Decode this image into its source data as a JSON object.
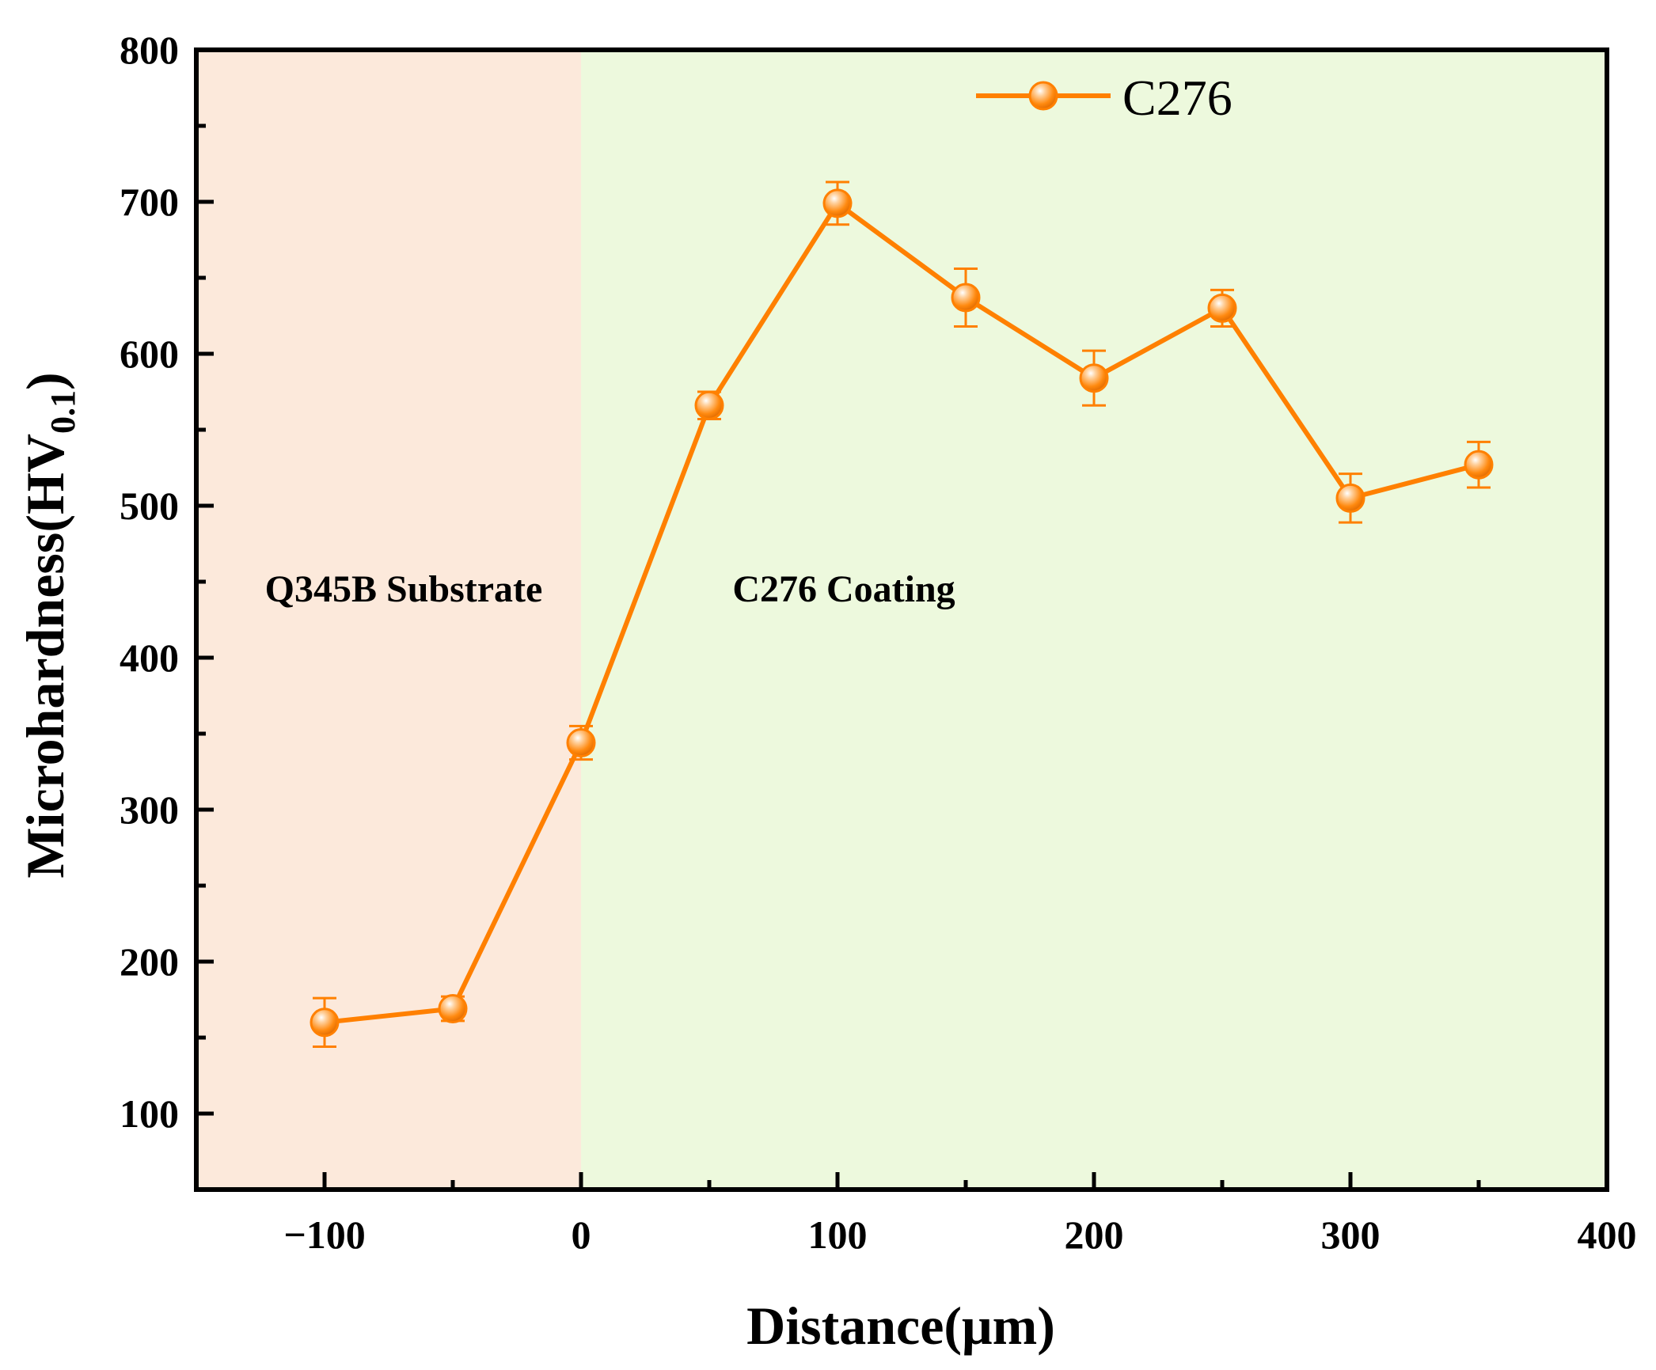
{
  "chart_data": {
    "type": "line",
    "title": "",
    "xlabel": "Distance(μm)",
    "ylabel_main": "Microhardness(HV",
    "ylabel_sub": "0.1",
    "ylabel_close": ")",
    "xlim": [
      -150,
      400
    ],
    "ylim": [
      50,
      800
    ],
    "xticks": [
      -100,
      0,
      100,
      200,
      300,
      400
    ],
    "xtick_labels": [
      "−100",
      "0",
      "100",
      "200",
      "300",
      "400"
    ],
    "yticks": [
      100,
      200,
      300,
      400,
      500,
      600,
      700,
      800
    ],
    "ytick_labels": [
      "100",
      "200",
      "300",
      "400",
      "500",
      "600",
      "700",
      "800"
    ],
    "x_minor_step": 50,
    "y_minor_step": 50,
    "regions": [
      {
        "name": "substrate",
        "label": "Q345B Substrate",
        "x_start": -150,
        "x_end": 0,
        "color": "#fce9db"
      },
      {
        "name": "coating",
        "label": "C276 Coating",
        "x_start": 0,
        "x_end": 400,
        "color": "#edf9dd"
      }
    ],
    "series": [
      {
        "name": "C276",
        "color": "#ff8000",
        "x": [
          -100,
          -50,
          0,
          50,
          100,
          150,
          200,
          250,
          300,
          350
        ],
        "y": [
          160,
          169,
          344,
          566,
          699,
          637,
          584,
          630,
          505,
          527
        ],
        "err": [
          16,
          8,
          11,
          9,
          14,
          19,
          18,
          12,
          16,
          15
        ]
      }
    ],
    "legend": {
      "position": "top-right",
      "label": "C276"
    }
  }
}
